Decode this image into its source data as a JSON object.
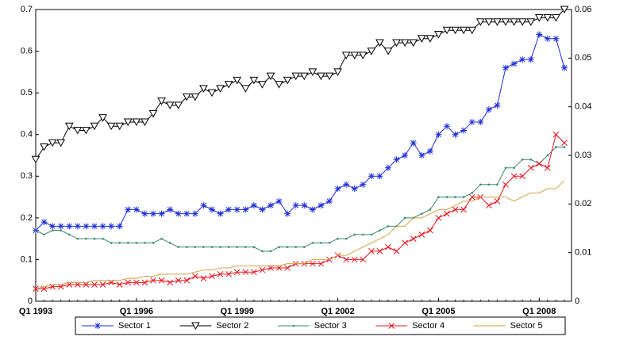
{
  "chart_data": {
    "type": "line",
    "categories": [
      "Q1 1993",
      null,
      null,
      null,
      null,
      null,
      null,
      null,
      null,
      null,
      null,
      null,
      "Q1 1996",
      null,
      null,
      null,
      null,
      null,
      null,
      null,
      null,
      null,
      null,
      null,
      "Q1 1999",
      null,
      null,
      null,
      null,
      null,
      null,
      null,
      null,
      null,
      null,
      null,
      "Q1 2002",
      null,
      null,
      null,
      null,
      null,
      null,
      null,
      null,
      null,
      null,
      null,
      "Q1 2005",
      null,
      null,
      null,
      null,
      null,
      null,
      null,
      null,
      null,
      null,
      null,
      "Q1 2008",
      null,
      null,
      null
    ],
    "ylim": [
      0,
      0.7
    ],
    "yticks": [
      0,
      0.1,
      0.2,
      0.3,
      0.4,
      0.5,
      0.6,
      0.7
    ],
    "y2lim": [
      0,
      0.06
    ],
    "y2ticks": [
      0,
      0.01,
      0.02,
      0.03,
      0.04,
      0.05,
      0.06
    ],
    "legend": "bottom",
    "series": [
      {
        "name": "Sector 1",
        "color": "#1f2fd8",
        "marker": "star",
        "values": [
          0.17,
          0.19,
          0.18,
          0.18,
          0.18,
          0.18,
          0.18,
          0.18,
          0.18,
          0.18,
          0.18,
          0.22,
          0.22,
          0.21,
          0.21,
          0.21,
          0.22,
          0.21,
          0.21,
          0.21,
          0.23,
          0.22,
          0.21,
          0.22,
          0.22,
          0.22,
          0.23,
          0.22,
          0.23,
          0.24,
          0.21,
          0.23,
          0.23,
          0.22,
          0.23,
          0.24,
          0.27,
          0.28,
          0.27,
          0.28,
          0.3,
          0.3,
          0.32,
          0.34,
          0.35,
          0.38,
          0.35,
          0.36,
          0.4,
          0.42,
          0.4,
          0.41,
          0.43,
          0.43,
          0.46,
          0.47,
          0.56,
          0.57,
          0.58,
          0.58,
          0.64,
          0.63,
          0.63,
          0.56
        ]
      },
      {
        "name": "Sector 2",
        "color": "#000000",
        "marker": "triangle-down",
        "values": [
          0.34,
          0.37,
          0.38,
          0.38,
          0.42,
          0.41,
          0.41,
          0.42,
          0.44,
          0.42,
          0.42,
          0.43,
          0.43,
          0.43,
          0.45,
          0.48,
          0.47,
          0.47,
          0.49,
          0.49,
          0.51,
          0.5,
          0.51,
          0.52,
          0.53,
          0.51,
          0.53,
          0.52,
          0.54,
          0.52,
          0.53,
          0.54,
          0.54,
          0.55,
          0.54,
          0.54,
          0.55,
          0.59,
          0.59,
          0.59,
          0.6,
          0.62,
          0.6,
          0.62,
          0.62,
          0.62,
          0.63,
          0.63,
          0.64,
          0.65,
          0.65,
          0.65,
          0.65,
          0.67,
          0.67,
          0.67,
          0.67,
          0.67,
          0.67,
          0.67,
          0.68,
          0.68,
          0.68,
          0.7
        ]
      },
      {
        "name": "Sector 3",
        "color": "#3a8a6a",
        "marker": "dot",
        "values": [
          0.17,
          0.16,
          0.17,
          0.17,
          0.16,
          0.15,
          0.15,
          0.15,
          0.15,
          0.14,
          0.14,
          0.14,
          0.14,
          0.14,
          0.14,
          0.15,
          0.14,
          0.13,
          0.13,
          0.13,
          0.13,
          0.13,
          0.13,
          0.13,
          0.13,
          0.13,
          0.13,
          0.12,
          0.12,
          0.13,
          0.13,
          0.13,
          0.13,
          0.14,
          0.14,
          0.14,
          0.15,
          0.15,
          0.16,
          0.16,
          0.16,
          0.17,
          0.18,
          0.18,
          0.2,
          0.2,
          0.21,
          0.22,
          0.25,
          0.25,
          0.25,
          0.25,
          0.26,
          0.28,
          0.28,
          0.28,
          0.32,
          0.32,
          0.34,
          0.34,
          0.33,
          0.35,
          0.37,
          0.37
        ]
      },
      {
        "name": "Sector 4",
        "color": "#e8141e",
        "marker": "x",
        "values": [
          0.03,
          0.03,
          0.035,
          0.035,
          0.04,
          0.04,
          0.04,
          0.04,
          0.04,
          0.045,
          0.04,
          0.045,
          0.045,
          0.045,
          0.05,
          0.05,
          0.045,
          0.05,
          0.05,
          0.06,
          0.055,
          0.06,
          0.065,
          0.065,
          0.07,
          0.07,
          0.07,
          0.075,
          0.08,
          0.08,
          0.08,
          0.09,
          0.09,
          0.09,
          0.09,
          0.1,
          0.11,
          0.1,
          0.1,
          0.1,
          0.12,
          0.12,
          0.13,
          0.12,
          0.14,
          0.15,
          0.16,
          0.17,
          0.2,
          0.21,
          0.22,
          0.22,
          0.25,
          0.25,
          0.23,
          0.24,
          0.28,
          0.3,
          0.3,
          0.32,
          0.33,
          0.32,
          0.4,
          0.38
        ]
      },
      {
        "name": "Sector 5",
        "color": "#d4a040",
        "marker": "none",
        "values": [
          0.03,
          0.035,
          0.04,
          0.04,
          0.045,
          0.045,
          0.045,
          0.05,
          0.05,
          0.05,
          0.05,
          0.055,
          0.055,
          0.06,
          0.06,
          0.065,
          0.065,
          0.065,
          0.065,
          0.07,
          0.075,
          0.075,
          0.08,
          0.08,
          0.085,
          0.085,
          0.085,
          0.085,
          0.085,
          0.085,
          0.09,
          0.09,
          0.09,
          0.1,
          0.1,
          0.1,
          0.11,
          0.11,
          0.12,
          0.13,
          0.14,
          0.15,
          0.16,
          0.18,
          0.18,
          0.2,
          0.2,
          0.21,
          0.22,
          0.22,
          0.23,
          0.24,
          0.24,
          0.25,
          0.25,
          0.25,
          0.25,
          0.24,
          0.25,
          0.26,
          0.26,
          0.27,
          0.27,
          0.29
        ]
      }
    ]
  }
}
